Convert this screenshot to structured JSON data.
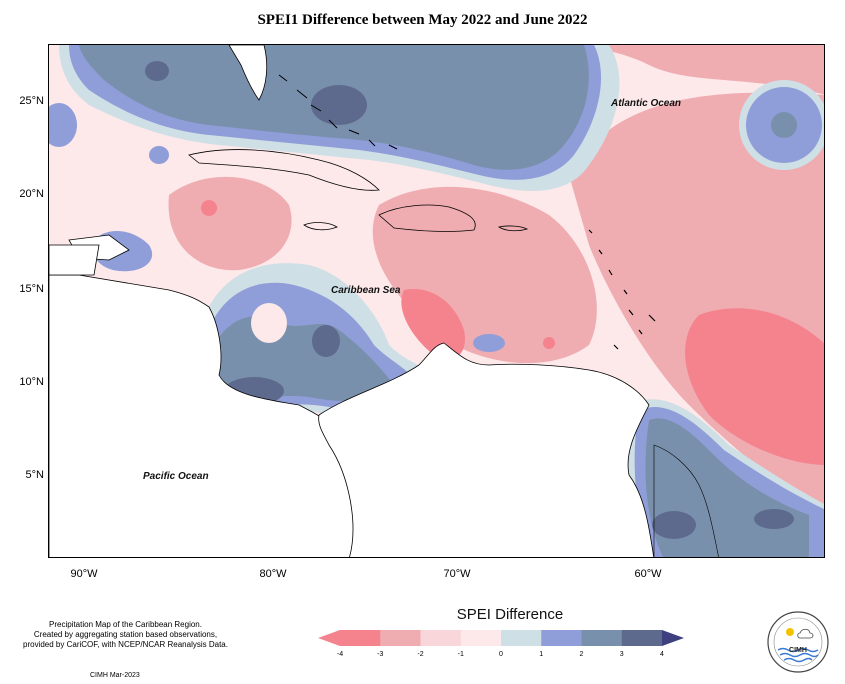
{
  "title": "SPEI1 Difference between May 2022 and June 2022",
  "y_axis_labels": [
    "25°N",
    "20°N",
    "15°N",
    "10°N",
    "5°N"
  ],
  "x_axis_labels": [
    "90°W",
    "80°W",
    "70°W",
    "60°W"
  ],
  "ocean_labels": {
    "atlantic": "Atlantic Ocean",
    "caribbean": "Caribbean Sea",
    "pacific": "Pacific Ocean"
  },
  "caption": {
    "line1": "Precipitation Map of the Caribbean Region.",
    "line2": "Created by aggregating station based observations,",
    "line3": "provided by CariCOF, with NCEP/NCAR Reanalysis Data."
  },
  "credit": "CIMH Mar-2023",
  "legend": {
    "title": "SPEI Difference",
    "ticks": [
      "-4",
      "-3",
      "-2",
      "-1",
      "0",
      "1",
      "2",
      "3",
      "4"
    ],
    "colors": [
      "#f4838e",
      "#efadb2",
      "#f9d6da",
      "#fde8ea",
      "#cfdfe6",
      "#8f9ed8",
      "#7990ad",
      "#5d6a8d"
    ],
    "end_low_color": "#f4838e",
    "end_high_color": "#3e3f7e"
  },
  "logo": {
    "text": "CIMH"
  }
}
